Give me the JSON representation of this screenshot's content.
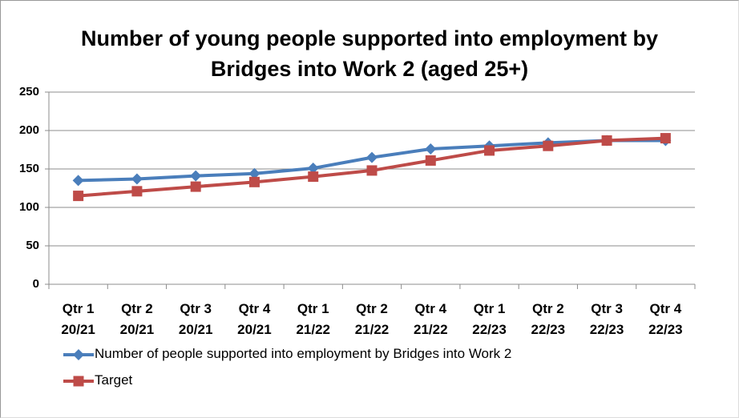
{
  "chart_data": {
    "type": "line",
    "title": "Number of young people supported into employment by Bridges into Work 2 (aged 25+)",
    "categories": [
      "Qtr 1 20/21",
      "Qtr 2 20/21",
      "Qtr 3 20/21",
      "Qtr 4 20/21",
      "Qtr 1 21/22",
      "Qtr 2 21/22",
      "Qtr 4 21/22",
      "Qtr 1 22/23",
      "Qtr 2 22/23",
      "Qtr 3 22/23",
      "Qtr 4 22/23"
    ],
    "series": [
      {
        "name": "Number of people supported into employment by Bridges into Work 2",
        "color": "#4a7ebb",
        "marker": "diamond",
        "values": [
          135,
          137,
          141,
          144,
          151,
          165,
          176,
          180,
          184,
          187,
          187
        ]
      },
      {
        "name": "Target",
        "color": "#be4b48",
        "marker": "square",
        "values": [
          115,
          121,
          127,
          133,
          140,
          148,
          161,
          174,
          180,
          187,
          190
        ]
      }
    ],
    "ylim": [
      0,
      250
    ],
    "yticks": [
      0,
      50,
      100,
      150,
      200,
      250
    ],
    "grid": true,
    "legend": "bottom-left"
  }
}
